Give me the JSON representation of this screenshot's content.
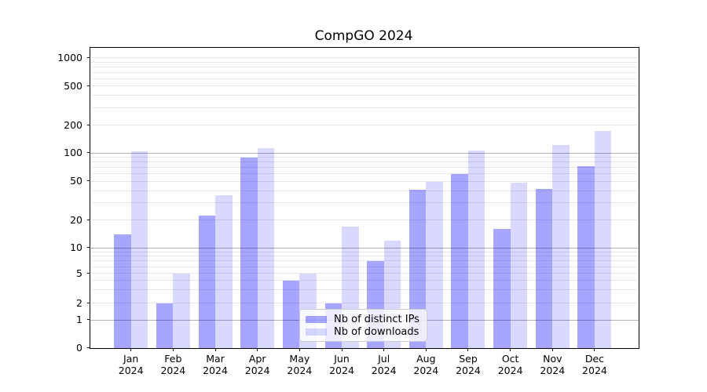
{
  "chart_data": {
    "type": "bar",
    "title": "CompGO 2024",
    "xlabel": "",
    "ylabel": "",
    "year_label": "2024",
    "categories": [
      "Jan",
      "Feb",
      "Mar",
      "Apr",
      "May",
      "Jun",
      "Jul",
      "Aug",
      "Sep",
      "Oct",
      "Nov",
      "Dec"
    ],
    "series": [
      {
        "name": "Nb of distinct IPs",
        "values": [
          14,
          2,
          22,
          90,
          4,
          2,
          7,
          41,
          60,
          16,
          42,
          72
        ]
      },
      {
        "name": "Nb of downloads",
        "values": [
          105,
          5,
          36,
          112,
          5,
          17,
          12,
          49,
          106,
          48,
          122,
          173
        ]
      }
    ],
    "yticks": [
      0,
      1,
      2,
      5,
      10,
      20,
      50,
      100,
      200,
      500,
      1000
    ],
    "ylim": [
      0,
      1300
    ],
    "yscale": "log-like (compressed below 10, linear 0-1)",
    "grid": "on (minor + major horizontal lines)",
    "legend_position": "inside lower-center-left"
  },
  "colors": {
    "ips_bar": "rgba(0,0,255,0.35)",
    "downloads_bar": "rgba(0,0,255,0.15)",
    "grid_major": "#b0b0b0",
    "grid_minor": "#e7e7e7",
    "axis": "#000000"
  }
}
